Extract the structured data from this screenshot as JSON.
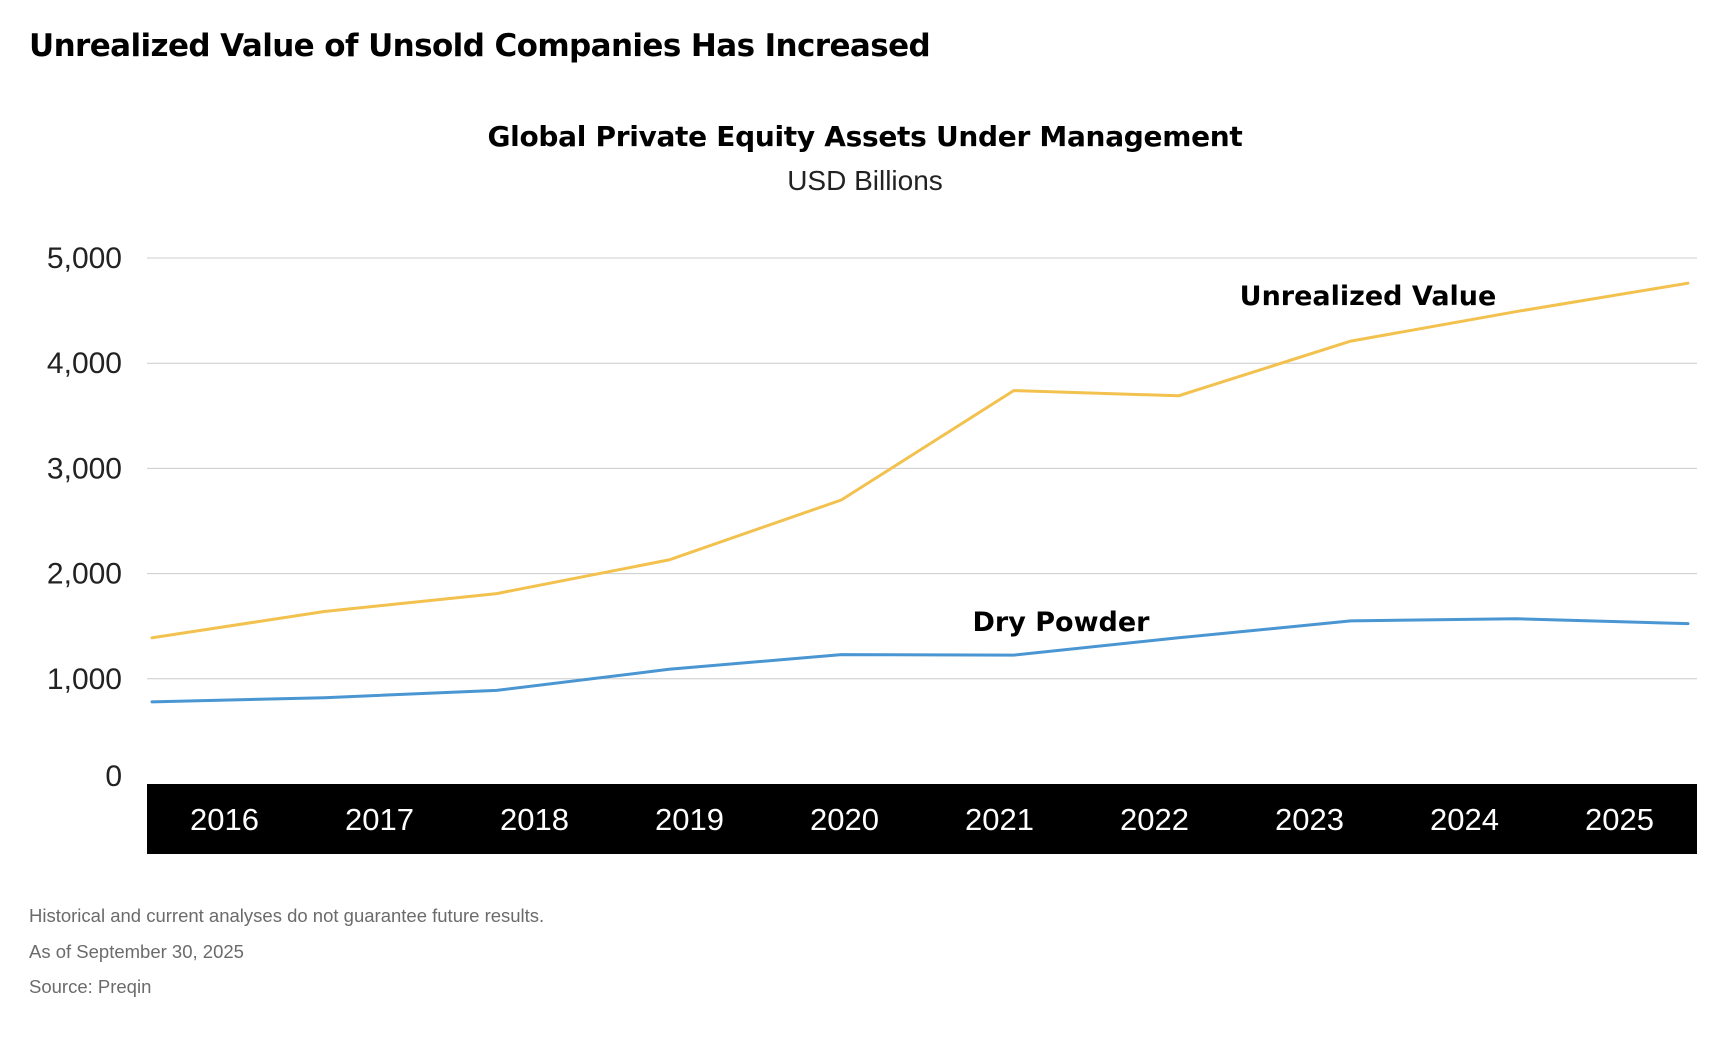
{
  "heading": "Unrealized Value of Unsold Companies Has Increased",
  "footnotes": {
    "disclaimer": "Historical and current analyses do not guarantee future results.",
    "as_of": "As of September 30, 2025",
    "source": "Source: Preqin"
  },
  "colors": {
    "unrealized_value": "#F2C14E",
    "dry_powder": "#4A96D2",
    "gridline": "#cccccc",
    "axis_band": "#000000",
    "axis_text": "#ffffff"
  },
  "chart_data": {
    "type": "line",
    "title": "Global Private Equity Assets Under Management",
    "subtitle": "USD Billions",
    "xlabel": "",
    "ylabel": "",
    "categories": [
      "2016",
      "2017",
      "2018",
      "2019",
      "2020",
      "2021",
      "2022",
      "2023",
      "2024",
      "2025"
    ],
    "ylim": [
      0,
      5000
    ],
    "yticks": [
      0,
      1000,
      2000,
      3000,
      4000,
      5000
    ],
    "ytick_labels": [
      "0",
      "1,000",
      "2,000",
      "3,000",
      "4,000",
      "5,000"
    ],
    "grid": true,
    "x_axis_style": "black band with white year labels",
    "series": [
      {
        "name": "Unrealized Value",
        "color": "#F2C14E",
        "x": [
          2016.0,
          2017.15,
          2018.3,
          2019.45,
          2020.6,
          2021.75,
          2022.85,
          2024.0,
          2025.1,
          2026.25
        ],
        "values": [
          1390,
          1640,
          1810,
          2130,
          2700,
          3740,
          3690,
          4210,
          4490,
          4760
        ]
      },
      {
        "name": "Dry Powder",
        "color": "#4A96D2",
        "x": [
          2016.0,
          2017.15,
          2018.3,
          2019.45,
          2020.6,
          2021.75,
          2022.85,
          2024.0,
          2025.1,
          2026.25
        ],
        "values": [
          780,
          820,
          890,
          1090,
          1230,
          1225,
          1390,
          1550,
          1570,
          1525
        ]
      }
    ]
  }
}
